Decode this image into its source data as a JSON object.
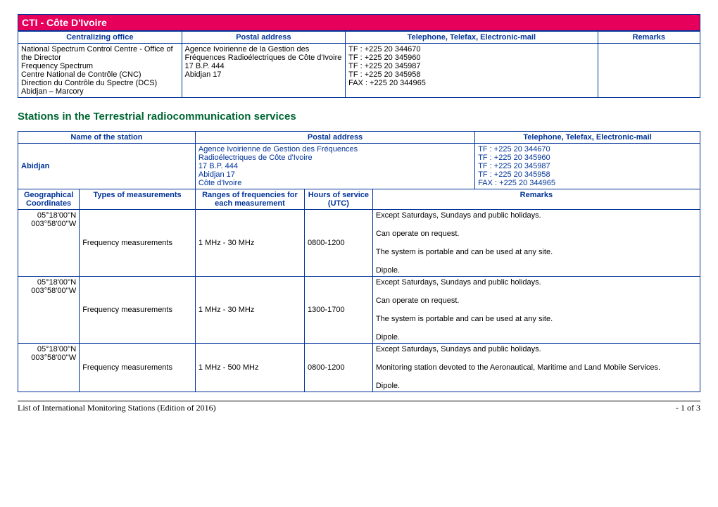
{
  "titleBar": "CTI - Côte D'Ivoire",
  "officeTable": {
    "headers": [
      "Centralizing office",
      "Postal address",
      "Telephone, Telefax, Electronic-mail",
      "Remarks"
    ],
    "row": {
      "office": "National Spectrum Control Centre - Office of the Director\nFrequency Spectrum\nCentre National de Contrôle (CNC)\nDirection du Contrôle du Spectre (DCS)\nAbidjan – Marcory",
      "postal": "Agence Ivoirienne de la Gestion des Fréquences Radioélectriques de Côte d'Ivoire\n17 B.P. 444\nAbidjan 17",
      "contact": "TF : +225 20 344670\nTF : +225 20 345960\nTF : +225 20 345987\nTF : +225 20 345958\nFAX : +225 20 344965",
      "remarks": ""
    }
  },
  "sectionHeading": "Stations in the Terrestrial radiocommunication services",
  "stationTable": {
    "headers1": [
      "Name of the station",
      "Postal address",
      "Telephone, Telefax, Electronic-mail"
    ],
    "stationRow": {
      "name": "Abidjan",
      "postal": "Agence Ivoirienne de Gestion des Fréquences\nRadioélectriques de Côte d'Ivoire\n17 B.P. 444\nAbidjan 17\nCôte d'Ivoire",
      "contact": "TF : +225 20 344670\nTF : +225 20 345960\nTF : +225 20 345987\nTF : +225 20 345958\nFAX : +225 20 344965"
    },
    "headers2": [
      "Geographical Coordinates",
      "Types of measurements",
      "Ranges of frequencies for each measurement",
      "Hours of service (UTC)",
      "Remarks"
    ],
    "rows": [
      {
        "coords": "05°18'00''N\n003°58'00''W",
        "type": "Frequency measurements",
        "range": "1 MHz - 30 MHz",
        "hours": "0800-1200",
        "remarks": [
          "Except Saturdays, Sundays and public holidays.",
          "Can operate on request.",
          "The system is portable and can be used at any site.",
          "Dipole."
        ]
      },
      {
        "coords": "05°18'00''N\n003°58'00''W",
        "type": "Frequency measurements",
        "range": "1 MHz - 30 MHz",
        "hours": "1300-1700",
        "remarks": [
          "Except Saturdays, Sundays and public holidays.",
          "Can operate on request.",
          "The system is portable and can be used at any site.",
          "Dipole."
        ]
      },
      {
        "coords": "05°18'00''N\n003°58'00''W",
        "type": "Frequency measurements",
        "range": "1 MHz - 500 MHz",
        "hours": "0800-1200",
        "remarks": [
          "Except Saturdays, Sundays and public holidays.",
          "Monitoring station devoted to the Aeronautical, Maritime and Land Mobile Services.",
          "Dipole."
        ]
      }
    ]
  },
  "footer": {
    "left": "List of International Monitoring Stations (Edition of 2016)",
    "right": "- 1 of 3"
  },
  "colors": {
    "headerBg": "#e6005c",
    "border": "#003399",
    "headingGreen": "#006633"
  }
}
